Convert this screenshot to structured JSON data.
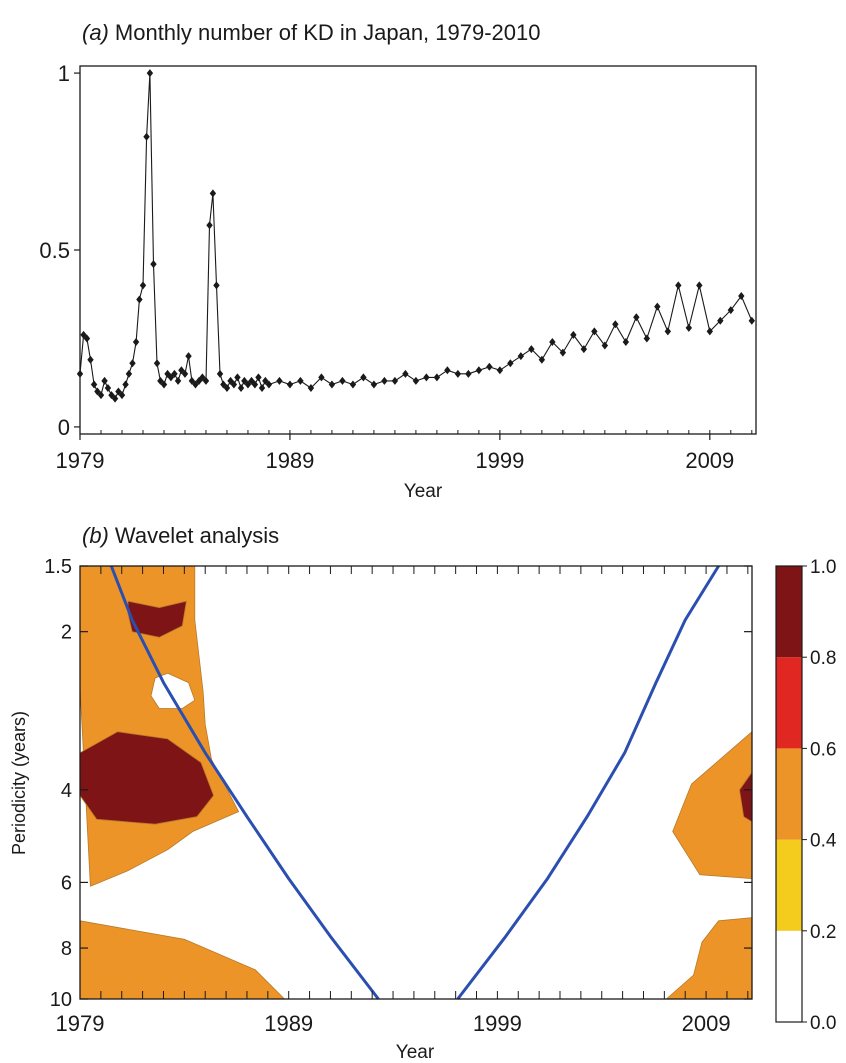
{
  "chart_data": [
    {
      "type": "line",
      "panel_label": "(a)",
      "title": "Monthly number of KD in Japan, 1979-2010",
      "xlabel": "Year",
      "ylabel": "",
      "xlim": [
        1979,
        2011.2
      ],
      "ylim": [
        -0.02,
        1.02
      ],
      "x_ticks": [
        1979,
        1989,
        1999,
        2009
      ],
      "x_tick_labels": [
        "1979",
        "1989",
        "1999",
        "2009"
      ],
      "y_ticks": [
        0,
        0.5,
        1
      ],
      "y_tick_labels": [
        "0",
        "0.5",
        "1"
      ],
      "marker": "diamond",
      "color": "#1a1a1a",
      "grid": false,
      "series": [
        {
          "x": [
            1979.0,
            1979.17,
            1979.33,
            1979.5,
            1979.67,
            1979.83,
            1980.0,
            1980.17,
            1980.33,
            1980.5,
            1980.67,
            1980.83,
            1981.0,
            1981.17,
            1981.33,
            1981.5,
            1981.67,
            1981.83,
            1982.0,
            1982.17,
            1982.33,
            1982.5,
            1982.67,
            1982.83,
            1983.0,
            1983.17,
            1983.33,
            1983.5,
            1983.67,
            1983.83,
            1984.0,
            1984.17,
            1984.33,
            1984.5,
            1984.67,
            1984.83,
            1985.0,
            1985.17,
            1985.33,
            1985.5,
            1985.67,
            1985.83,
            1986.0,
            1986.17,
            1986.33,
            1986.5,
            1986.67,
            1986.83,
            1987.0,
            1987.17,
            1987.33,
            1987.5,
            1987.67,
            1987.83,
            1988.0,
            1988.5,
            1989.0,
            1989.5,
            1990.0,
            1990.5,
            1991.0,
            1991.5,
            1992.0,
            1992.5,
            1993.0,
            1993.5,
            1994.0,
            1994.5,
            1995.0,
            1995.5,
            1996.0,
            1996.5,
            1997.0,
            1997.5,
            1998.0,
            1998.5,
            1999.0,
            1999.5,
            2000.0,
            2000.5,
            2001.0,
            2001.5,
            2002.0,
            2002.5,
            2003.0,
            2003.5,
            2004.0,
            2004.5,
            2005.0,
            2005.5,
            2006.0,
            2006.5,
            2007.0,
            2007.5,
            2008.0,
            2008.5,
            2009.0,
            2009.5,
            2010.0,
            2010.5,
            2011.0
          ],
          "y": [
            0.15,
            0.26,
            0.25,
            0.19,
            0.12,
            0.1,
            0.09,
            0.13,
            0.11,
            0.09,
            0.08,
            0.1,
            0.09,
            0.12,
            0.15,
            0.18,
            0.24,
            0.36,
            0.4,
            0.82,
            1.0,
            0.46,
            0.18,
            0.13,
            0.12,
            0.15,
            0.14,
            0.15,
            0.13,
            0.16,
            0.15,
            0.2,
            0.13,
            0.12,
            0.13,
            0.14,
            0.13,
            0.57,
            0.66,
            0.4,
            0.15,
            0.12,
            0.11,
            0.13,
            0.12,
            0.14,
            0.11,
            0.13,
            0.12,
            0.13,
            0.12,
            0.14,
            0.11,
            0.13,
            0.12,
            0.13,
            0.12,
            0.13,
            0.11,
            0.14,
            0.12,
            0.13,
            0.12,
            0.14,
            0.12,
            0.13,
            0.13,
            0.15,
            0.13,
            0.14,
            0.14,
            0.16,
            0.15,
            0.15,
            0.16,
            0.17,
            0.16,
            0.18,
            0.2,
            0.22,
            0.19,
            0.24,
            0.21,
            0.26,
            0.22,
            0.27,
            0.23,
            0.29,
            0.24,
            0.31,
            0.25,
            0.34,
            0.27,
            0.4,
            0.28,
            0.4,
            0.27,
            0.3,
            0.33,
            0.37,
            0.3
          ]
        }
      ]
    },
    {
      "type": "heatmap",
      "panel_label": "(b)",
      "title": "Wavelet analysis",
      "xlabel": "Year",
      "ylabel": "Periodicity (years)",
      "xlim": [
        1979,
        2011.2
      ],
      "ylim": [
        1.5,
        10
      ],
      "y_scale": "log",
      "x_ticks": [
        1979,
        1989,
        1999,
        2009
      ],
      "x_tick_labels": [
        "1979",
        "1989",
        "1999",
        "2009"
      ],
      "y_ticks": [
        1.5,
        2,
        4,
        6,
        8,
        10
      ],
      "y_tick_labels": [
        "1.5",
        "2",
        "4",
        "6",
        "8",
        "10"
      ],
      "colorbar": {
        "ticks": [
          0.0,
          0.2,
          0.4,
          0.6,
          0.8,
          1.0
        ],
        "tick_labels": [
          "0.0",
          "0.2",
          "0.4",
          "0.6",
          "0.8",
          "1.0"
        ],
        "bands": [
          {
            "from": 0.0,
            "to": 0.2,
            "color": "#ffffff"
          },
          {
            "from": 0.2,
            "to": 0.4,
            "color": "#f4cc1e"
          },
          {
            "from": 0.4,
            "to": 0.6,
            "color": "#ec9428"
          },
          {
            "from": 0.6,
            "to": 0.8,
            "color": "#e12722"
          },
          {
            "from": 0.8,
            "to": 1.0,
            "color": "#7e1416"
          }
        ]
      },
      "regions": [
        {
          "level": 0.5,
          "color": "#ec9428",
          "x": [
            1979,
            1981.7,
            1983.5,
            1984.1,
            1984.5,
            1984.5,
            1984.9,
            1985.0,
            1985.3,
            1986.6,
            1984.4,
            1983.2,
            1981.3,
            1979.5,
            1979
          ],
          "y": [
            1.5,
            1.5,
            1.5,
            1.5,
            1.5,
            1.9,
            2.6,
            3.0,
            3.5,
            4.4,
            4.8,
            5.2,
            5.7,
            6.1,
            2.55
          ]
        },
        {
          "level": 0.5,
          "color": "#ec9428",
          "x": [
            1979,
            1984.0,
            1987.4,
            1988.8,
            1988.8,
            1984.5,
            1979
          ],
          "y": [
            7.1,
            7.7,
            8.8,
            10,
            10,
            10,
            10
          ]
        },
        {
          "level": 0.5,
          "color": "#ec9428",
          "x": [
            2011.2,
            2008.3,
            2007.4,
            2008.7,
            2011.2
          ],
          "y": [
            3.1,
            3.9,
            4.8,
            5.8,
            5.9
          ]
        },
        {
          "level": 0.5,
          "color": "#ec9428",
          "x": [
            2011.2,
            2009.6,
            2008.8,
            2008.4,
            2007.1,
            2011.2
          ],
          "y": [
            7.0,
            7.1,
            7.8,
            9.0,
            10,
            10
          ]
        },
        {
          "level": 0.9,
          "color": "#7e1416",
          "x": [
            1981.3,
            1982.8,
            1984.1,
            1983.9,
            1982.8,
            1981.5,
            1981.3
          ],
          "y": [
            1.75,
            1.8,
            1.75,
            1.95,
            2.05,
            2.0,
            1.85
          ]
        },
        {
          "level": 0.9,
          "color": "#7e1416",
          "x": [
            1979,
            1980.8,
            1983.2,
            1984.8,
            1985.4,
            1984.6,
            1982.6,
            1979.8,
            1979
          ],
          "y": [
            3.4,
            3.1,
            3.2,
            3.55,
            4.1,
            4.5,
            4.65,
            4.55,
            4.1
          ]
        },
        {
          "level": 0.9,
          "color": "#7e1416",
          "x": [
            2011.2,
            2010.6,
            2010.8,
            2011.2
          ],
          "y": [
            3.7,
            4.0,
            4.5,
            4.6
          ]
        },
        {
          "level": 0.1,
          "color": "#ffffff",
          "x": [
            1982.6,
            1983.2,
            1984.2,
            1984.5,
            1983.9,
            1982.8,
            1982.4
          ],
          "y": [
            2.45,
            2.4,
            2.5,
            2.7,
            2.8,
            2.8,
            2.65
          ]
        }
      ],
      "cone_of_influence": {
        "color": "#2b4fb0",
        "left": {
          "x": [
            1980.5,
            1981.5,
            1983.0,
            1985.0,
            1987.0,
            1989.0,
            1991.0,
            1993.3
          ],
          "y": [
            1.5,
            1.9,
            2.5,
            3.4,
            4.5,
            5.9,
            7.6,
            10
          ]
        },
        "right": {
          "x": [
            1997.1,
            1999.4,
            2001.4,
            2003.3,
            2005.1,
            2006.6,
            2008.0,
            2009.6
          ],
          "y": [
            10,
            7.6,
            5.9,
            4.5,
            3.4,
            2.5,
            1.9,
            1.5
          ]
        }
      }
    }
  ]
}
